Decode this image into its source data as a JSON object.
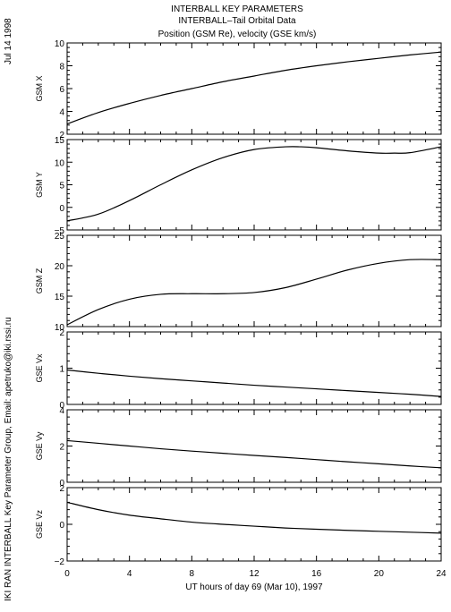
{
  "header": {
    "date_label": "Jul 14 1998",
    "side_credit": "IKI RAN INTERBALL Key Parameter Group, Email: apetruko@iki.rssi.ru",
    "title_lines": [
      "INTERBALL KEY PARAMETERS",
      "INTERBALL–Tail Orbital Data",
      "Position (GSM Re), velocity (GSE km/s)"
    ]
  },
  "chart_data": {
    "type": "line",
    "xlabel": "UT hours of day  69 (Mar 10), 1997",
    "x_ticks": [
      0,
      4,
      8,
      12,
      16,
      20,
      24
    ],
    "xlim": [
      0,
      24
    ],
    "grid": false,
    "panels": [
      {
        "ylabel": "GSM X",
        "ylim": [
          2,
          10
        ],
        "y_ticks": [
          2,
          4,
          6,
          8,
          10
        ],
        "x": [
          0,
          2,
          4,
          6,
          8,
          10,
          12,
          14,
          16,
          18,
          20,
          22,
          24
        ],
        "y": [
          2.9,
          3.9,
          4.7,
          5.4,
          6.0,
          6.6,
          7.1,
          7.6,
          8.0,
          8.35,
          8.65,
          8.95,
          9.2
        ]
      },
      {
        "ylabel": "GSM Y",
        "ylim": [
          -5,
          15
        ],
        "y_ticks": [
          -5,
          0,
          5,
          10,
          15
        ],
        "x": [
          0,
          2,
          4,
          6,
          8,
          10,
          12,
          14,
          15,
          16,
          18,
          20,
          21,
          22,
          24
        ],
        "y": [
          -3.0,
          -1.5,
          1.5,
          5.0,
          8.3,
          11.0,
          12.8,
          13.4,
          13.4,
          13.2,
          12.5,
          12.0,
          12.0,
          12.1,
          13.4
        ]
      },
      {
        "ylabel": "GSM Z",
        "ylim": [
          10,
          25
        ],
        "y_ticks": [
          10,
          15,
          20,
          25
        ],
        "x": [
          0,
          2,
          4,
          6,
          8,
          10,
          12,
          14,
          16,
          18,
          20,
          22,
          24
        ],
        "y": [
          10.3,
          12.8,
          14.5,
          15.3,
          15.4,
          15.4,
          15.6,
          16.4,
          17.8,
          19.3,
          20.4,
          21.0,
          21.0
        ]
      },
      {
        "ylabel": "GSE Vx",
        "ylim": [
          0,
          2
        ],
        "y_ticks": [
          0,
          1,
          2
        ],
        "x": [
          0,
          2,
          4,
          6,
          8,
          10,
          12,
          14,
          16,
          18,
          20,
          22,
          24
        ],
        "y": [
          0.95,
          0.86,
          0.78,
          0.71,
          0.65,
          0.59,
          0.53,
          0.48,
          0.43,
          0.38,
          0.33,
          0.28,
          0.22
        ]
      },
      {
        "ylabel": "GSE Vy",
        "ylim": [
          0,
          4
        ],
        "y_ticks": [
          0,
          2,
          4
        ],
        "x": [
          0,
          2,
          4,
          6,
          8,
          10,
          12,
          14,
          16,
          18,
          20,
          22,
          24
        ],
        "y": [
          2.3,
          2.15,
          2.0,
          1.85,
          1.72,
          1.6,
          1.48,
          1.37,
          1.25,
          1.13,
          1.02,
          0.9,
          0.8
        ]
      },
      {
        "ylabel": "GSE Vz",
        "ylim": [
          -2,
          2
        ],
        "y_ticks": [
          -2,
          0,
          2
        ],
        "x": [
          0,
          2,
          4,
          6,
          8,
          10,
          12,
          14,
          16,
          18,
          20,
          22,
          24
        ],
        "y": [
          1.2,
          0.8,
          0.5,
          0.3,
          0.12,
          0.0,
          -0.1,
          -0.2,
          -0.27,
          -0.33,
          -0.38,
          -0.43,
          -0.48
        ]
      }
    ]
  }
}
